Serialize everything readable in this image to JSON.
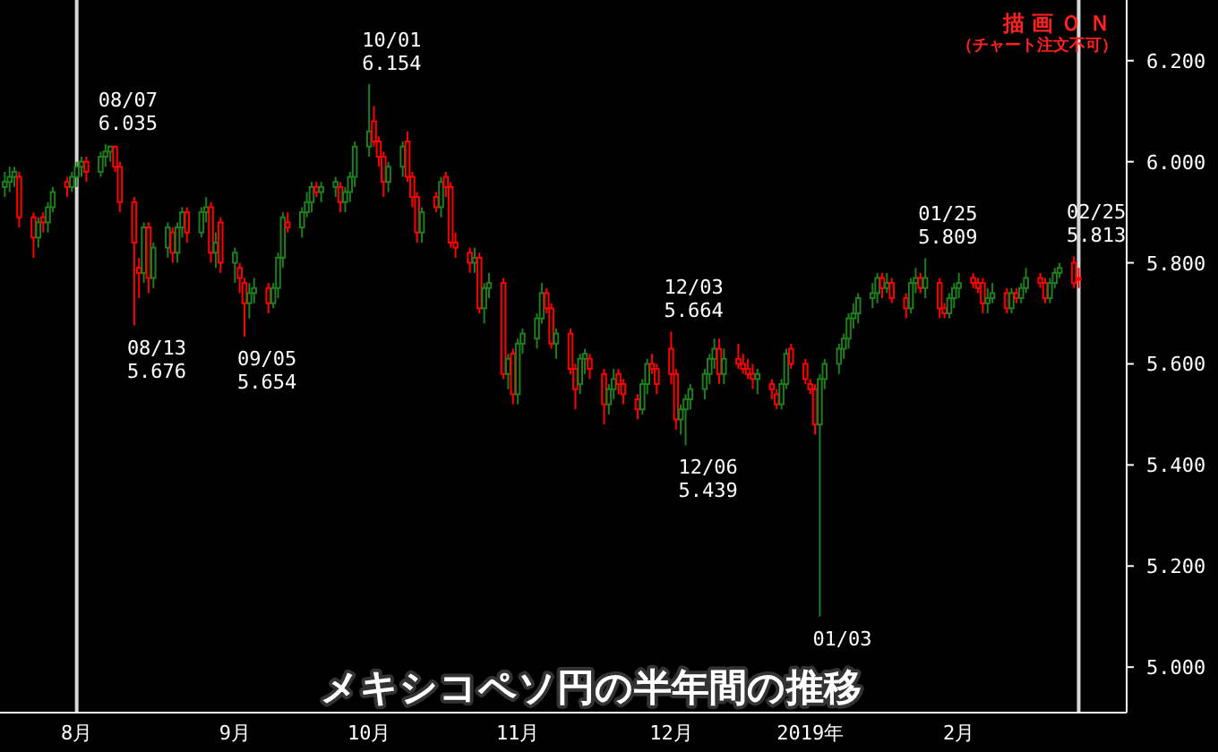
{
  "chart_data": {
    "type": "candlestick",
    "title": "メキシコペソ円の半年間の推移",
    "x": [
      "2018-07-17",
      "2018-07-18",
      "2018-07-19",
      "2018-07-20",
      "2018-07-23",
      "2018-07-24",
      "2018-07-25",
      "2018-07-26",
      "2018-07-27",
      "2018-07-30",
      "2018-07-31",
      "2018-08-01",
      "2018-08-02",
      "2018-08-03",
      "2018-08-06",
      "2018-08-07",
      "2018-08-08",
      "2018-08-09",
      "2018-08-10",
      "2018-08-13",
      "2018-08-14",
      "2018-08-15",
      "2018-08-16",
      "2018-08-17",
      "2018-08-20",
      "2018-08-21",
      "2018-08-22",
      "2018-08-23",
      "2018-08-24",
      "2018-08-27",
      "2018-08-28",
      "2018-08-29",
      "2018-08-30",
      "2018-08-31",
      "2018-09-03",
      "2018-09-04",
      "2018-09-05",
      "2018-09-06",
      "2018-09-07",
      "2018-09-10",
      "2018-09-11",
      "2018-09-12",
      "2018-09-13",
      "2018-09-14",
      "2018-09-17",
      "2018-09-18",
      "2018-09-19",
      "2018-09-20",
      "2018-09-21",
      "2018-09-24",
      "2018-09-25",
      "2018-09-26",
      "2018-09-27",
      "2018-09-28",
      "2018-10-01",
      "2018-10-02",
      "2018-10-03",
      "2018-10-04",
      "2018-10-05",
      "2018-10-08",
      "2018-10-09",
      "2018-10-10",
      "2018-10-11",
      "2018-10-12",
      "2018-10-15",
      "2018-10-16",
      "2018-10-17",
      "2018-10-18",
      "2018-10-19",
      "2018-10-22",
      "2018-10-23",
      "2018-10-24",
      "2018-10-25",
      "2018-10-26",
      "2018-10-29",
      "2018-10-30",
      "2018-10-31",
      "2018-11-01",
      "2018-11-02",
      "2018-11-05",
      "2018-11-06",
      "2018-11-07",
      "2018-11-08",
      "2018-11-09",
      "2018-11-12",
      "2018-11-13",
      "2018-11-14",
      "2018-11-15",
      "2018-11-16",
      "2018-11-19",
      "2018-11-20",
      "2018-11-21",
      "2018-11-22",
      "2018-11-23",
      "2018-11-26",
      "2018-11-27",
      "2018-11-28",
      "2018-11-29",
      "2018-11-30",
      "2018-12-03",
      "2018-12-04",
      "2018-12-05",
      "2018-12-06",
      "2018-12-07",
      "2018-12-10",
      "2018-12-11",
      "2018-12-12",
      "2018-12-13",
      "2018-12-14",
      "2018-12-17",
      "2018-12-18",
      "2018-12-19",
      "2018-12-20",
      "2018-12-21",
      "2018-12-24",
      "2018-12-25",
      "2018-12-26",
      "2018-12-27",
      "2018-12-28",
      "2018-12-31",
      "2019-01-01",
      "2019-01-02",
      "2019-01-03",
      "2019-01-04",
      "2019-01-07",
      "2019-01-08",
      "2019-01-09",
      "2019-01-10",
      "2019-01-11",
      "2019-01-14",
      "2019-01-15",
      "2019-01-16",
      "2019-01-17",
      "2019-01-18",
      "2019-01-21",
      "2019-01-22",
      "2019-01-23",
      "2019-01-24",
      "2019-01-25",
      "2019-01-28",
      "2019-01-29",
      "2019-01-30",
      "2019-01-31",
      "2019-02-01",
      "2019-02-04",
      "2019-02-05",
      "2019-02-06",
      "2019-02-07",
      "2019-02-08",
      "2019-02-11",
      "2019-02-12",
      "2019-02-13",
      "2019-02-14",
      "2019-02-15",
      "2019-02-18",
      "2019-02-19",
      "2019-02-20",
      "2019-02-21",
      "2019-02-22",
      "2019-02-25",
      "2019-02-26"
    ],
    "ohlc": [
      [
        5.95,
        5.98,
        5.93,
        5.96
      ],
      [
        5.96,
        5.99,
        5.94,
        5.97
      ],
      [
        5.97,
        5.99,
        5.95,
        5.98
      ],
      [
        5.97,
        5.98,
        5.87,
        5.89
      ],
      [
        5.89,
        5.9,
        5.81,
        5.85
      ],
      [
        5.85,
        5.89,
        5.83,
        5.88
      ],
      [
        5.89,
        5.9,
        5.86,
        5.88
      ],
      [
        5.88,
        5.92,
        5.86,
        5.91
      ],
      [
        5.91,
        5.95,
        5.9,
        5.94
      ],
      [
        5.96,
        5.97,
        5.93,
        5.95
      ],
      [
        5.95,
        5.98,
        5.94,
        5.97
      ],
      [
        5.97,
        6.0,
        5.95,
        5.99
      ],
      [
        5.99,
        6.01,
        5.97,
        6.0
      ],
      [
        6.0,
        6.01,
        5.96,
        5.98
      ],
      [
        5.98,
        6.02,
        5.97,
        6.01
      ],
      [
        6.01,
        6.035,
        5.99,
        6.02
      ],
      [
        6.02,
        6.03,
        6.0,
        6.03
      ],
      [
        6.03,
        6.03,
        5.98,
        5.99
      ],
      [
        5.99,
        6.0,
        5.9,
        5.92
      ],
      [
        5.92,
        5.93,
        5.676,
        5.84
      ],
      [
        5.79,
        5.81,
        5.73,
        5.78
      ],
      [
        5.78,
        5.88,
        5.76,
        5.87
      ],
      [
        5.87,
        5.88,
        5.74,
        5.77
      ],
      [
        5.77,
        5.84,
        5.75,
        5.83
      ],
      [
        5.83,
        5.88,
        5.81,
        5.87
      ],
      [
        5.86,
        5.87,
        5.8,
        5.82
      ],
      [
        5.82,
        5.88,
        5.8,
        5.87
      ],
      [
        5.87,
        5.91,
        5.85,
        5.9
      ],
      [
        5.9,
        5.91,
        5.84,
        5.86
      ],
      [
        5.86,
        5.91,
        5.85,
        5.9
      ],
      [
        5.9,
        5.93,
        5.88,
        5.91
      ],
      [
        5.91,
        5.92,
        5.8,
        5.82
      ],
      [
        5.82,
        5.86,
        5.79,
        5.84
      ],
      [
        5.88,
        5.89,
        5.78,
        5.8
      ],
      [
        5.8,
        5.83,
        5.76,
        5.82
      ],
      [
        5.79,
        5.8,
        5.74,
        5.77
      ],
      [
        5.76,
        5.77,
        5.654,
        5.72
      ],
      [
        5.72,
        5.76,
        5.69,
        5.74
      ],
      [
        5.74,
        5.77,
        5.72,
        5.75
      ],
      [
        5.75,
        5.76,
        5.7,
        5.72
      ],
      [
        5.72,
        5.76,
        5.71,
        5.75
      ],
      [
        5.75,
        5.82,
        5.73,
        5.81
      ],
      [
        5.81,
        5.9,
        5.79,
        5.89
      ],
      [
        5.88,
        5.9,
        5.86,
        5.87
      ],
      [
        5.87,
        5.91,
        5.85,
        5.9
      ],
      [
        5.9,
        5.94,
        5.89,
        5.92
      ],
      [
        5.92,
        5.96,
        5.9,
        5.95
      ],
      [
        5.95,
        5.96,
        5.93,
        5.94
      ],
      [
        5.94,
        5.96,
        5.92,
        5.95
      ],
      [
        5.95,
        5.97,
        5.93,
        5.96
      ],
      [
        5.95,
        5.96,
        5.9,
        5.92
      ],
      [
        5.92,
        5.95,
        5.9,
        5.94
      ],
      [
        5.94,
        5.98,
        5.92,
        5.97
      ],
      [
        5.97,
        6.04,
        5.95,
        6.03
      ],
      [
        6.03,
        6.154,
        6.01,
        6.06
      ],
      [
        6.08,
        6.11,
        6.03,
        6.04
      ],
      [
        6.04,
        6.05,
        5.99,
        6.01
      ],
      [
        6.01,
        6.02,
        5.93,
        5.96
      ],
      [
        5.96,
        6.0,
        5.94,
        5.99
      ],
      [
        5.99,
        6.04,
        5.97,
        6.03
      ],
      [
        6.04,
        6.06,
        5.96,
        5.97
      ],
      [
        5.97,
        5.98,
        5.91,
        5.93
      ],
      [
        5.93,
        5.94,
        5.84,
        5.86
      ],
      [
        5.86,
        5.91,
        5.84,
        5.9
      ],
      [
        5.93,
        5.94,
        5.9,
        5.91
      ],
      [
        5.91,
        5.97,
        5.89,
        5.96
      ],
      [
        5.97,
        5.98,
        5.93,
        5.95
      ],
      [
        5.95,
        5.96,
        5.83,
        5.84
      ],
      [
        5.84,
        5.86,
        5.81,
        5.83
      ],
      [
        5.82,
        5.83,
        5.78,
        5.8
      ],
      [
        5.8,
        5.83,
        5.78,
        5.81
      ],
      [
        5.81,
        5.82,
        5.7,
        5.71
      ],
      [
        5.71,
        5.76,
        5.68,
        5.75
      ],
      [
        5.75,
        5.78,
        5.73,
        5.76
      ],
      [
        5.76,
        5.77,
        5.57,
        5.58
      ],
      [
        5.58,
        5.62,
        5.55,
        5.61
      ],
      [
        5.62,
        5.63,
        5.52,
        5.54
      ],
      [
        5.54,
        5.65,
        5.52,
        5.64
      ],
      [
        5.64,
        5.67,
        5.62,
        5.66
      ],
      [
        5.65,
        5.7,
        5.63,
        5.69
      ],
      [
        5.69,
        5.76,
        5.68,
        5.74
      ],
      [
        5.74,
        5.75,
        5.7,
        5.71
      ],
      [
        5.71,
        5.72,
        5.63,
        5.64
      ],
      [
        5.64,
        5.67,
        5.61,
        5.66
      ],
      [
        5.66,
        5.67,
        5.58,
        5.59
      ],
      [
        5.59,
        5.6,
        5.51,
        5.55
      ],
      [
        5.56,
        5.62,
        5.54,
        5.61
      ],
      [
        5.61,
        5.63,
        5.58,
        5.62
      ],
      [
        5.61,
        5.62,
        5.57,
        5.59
      ],
      [
        5.58,
        5.59,
        5.48,
        5.52
      ],
      [
        5.52,
        5.56,
        5.5,
        5.55
      ],
      [
        5.55,
        5.59,
        5.53,
        5.57
      ],
      [
        5.58,
        5.59,
        5.54,
        5.56
      ],
      [
        5.56,
        5.57,
        5.52,
        5.54
      ],
      [
        5.53,
        5.54,
        5.49,
        5.51
      ],
      [
        5.51,
        5.57,
        5.5,
        5.56
      ],
      [
        5.56,
        5.61,
        5.54,
        5.6
      ],
      [
        5.6,
        5.62,
        5.58,
        5.59
      ],
      [
        5.59,
        5.6,
        5.54,
        5.56
      ],
      [
        5.63,
        5.664,
        5.56,
        5.58
      ],
      [
        5.58,
        5.59,
        5.47,
        5.49
      ],
      [
        5.49,
        5.52,
        5.46,
        5.51
      ],
      [
        5.51,
        5.54,
        5.439,
        5.53
      ],
      [
        5.53,
        5.56,
        5.51,
        5.55
      ],
      [
        5.55,
        5.59,
        5.53,
        5.58
      ],
      [
        5.58,
        5.62,
        5.56,
        5.61
      ],
      [
        5.61,
        5.65,
        5.59,
        5.63
      ],
      [
        5.63,
        5.65,
        5.56,
        5.58
      ],
      [
        5.58,
        5.63,
        5.56,
        5.61
      ],
      [
        5.61,
        5.64,
        5.59,
        5.6
      ],
      [
        5.6,
        5.62,
        5.58,
        5.59
      ],
      [
        5.59,
        5.61,
        5.57,
        5.58
      ],
      [
        5.58,
        5.6,
        5.55,
        5.57
      ],
      [
        5.57,
        5.59,
        5.54,
        5.58
      ],
      [
        5.56,
        5.57,
        5.53,
        5.55
      ],
      [
        5.54,
        5.55,
        5.51,
        5.52
      ],
      [
        5.52,
        5.57,
        5.51,
        5.56
      ],
      [
        5.56,
        5.63,
        5.55,
        5.62
      ],
      [
        5.63,
        5.64,
        5.59,
        5.6
      ],
      [
        5.6,
        5.61,
        5.56,
        5.57
      ],
      [
        5.56,
        5.57,
        5.54,
        5.55
      ],
      [
        5.55,
        5.56,
        5.46,
        5.48
      ],
      [
        5.48,
        5.58,
        5.1,
        5.57
      ],
      [
        5.57,
        5.61,
        5.55,
        5.6
      ],
      [
        5.6,
        5.64,
        5.58,
        5.63
      ],
      [
        5.63,
        5.66,
        5.61,
        5.65
      ],
      [
        5.65,
        5.7,
        5.63,
        5.69
      ],
      [
        5.69,
        5.72,
        5.67,
        5.7
      ],
      [
        5.7,
        5.74,
        5.68,
        5.73
      ],
      [
        5.73,
        5.76,
        5.71,
        5.74
      ],
      [
        5.74,
        5.78,
        5.72,
        5.77
      ],
      [
        5.77,
        5.78,
        5.73,
        5.75
      ],
      [
        5.75,
        5.78,
        5.74,
        5.76
      ],
      [
        5.76,
        5.77,
        5.72,
        5.73
      ],
      [
        5.73,
        5.74,
        5.69,
        5.71
      ],
      [
        5.71,
        5.77,
        5.7,
        5.76
      ],
      [
        5.76,
        5.79,
        5.74,
        5.77
      ],
      [
        5.77,
        5.78,
        5.74,
        5.75
      ],
      [
        5.75,
        5.809,
        5.73,
        5.77
      ],
      [
        5.76,
        5.77,
        5.69,
        5.71
      ],
      [
        5.71,
        5.72,
        5.69,
        5.7
      ],
      [
        5.7,
        5.74,
        5.69,
        5.73
      ],
      [
        5.73,
        5.76,
        5.71,
        5.75
      ],
      [
        5.75,
        5.78,
        5.73,
        5.76
      ],
      [
        5.77,
        5.78,
        5.75,
        5.76
      ],
      [
        5.76,
        5.77,
        5.74,
        5.75
      ],
      [
        5.76,
        5.77,
        5.7,
        5.72
      ],
      [
        5.72,
        5.75,
        5.7,
        5.73
      ],
      [
        5.73,
        5.76,
        5.72,
        5.74
      ],
      [
        5.74,
        5.75,
        5.7,
        5.71
      ],
      [
        5.71,
        5.75,
        5.7,
        5.74
      ],
      [
        5.74,
        5.75,
        5.72,
        5.73
      ],
      [
        5.73,
        5.76,
        5.72,
        5.75
      ],
      [
        5.75,
        5.79,
        5.74,
        5.77
      ],
      [
        5.77,
        5.78,
        5.75,
        5.76
      ],
      [
        5.76,
        5.77,
        5.72,
        5.73
      ],
      [
        5.73,
        5.77,
        5.72,
        5.76
      ],
      [
        5.76,
        5.79,
        5.75,
        5.78
      ],
      [
        5.78,
        5.8,
        5.77,
        5.79
      ],
      [
        5.8,
        5.813,
        5.75,
        5.76
      ],
      [
        5.77,
        5.79,
        5.75,
        5.77
      ]
    ],
    "colors": [
      "#1f7f1f",
      "#1f7f1f",
      "#1f7f1f",
      "#ff0000",
      "#ff0000",
      "#1f7f1f",
      "#ff0000",
      "#1f7f1f",
      "#1f7f1f",
      "#ff0000",
      "#1f7f1f",
      "#1f7f1f",
      "#1f7f1f",
      "#ff0000",
      "#1f7f1f",
      "#1f7f1f",
      "#1f7f1f",
      "#ff0000",
      "#ff0000",
      "#ff0000",
      "#ff0000",
      "#1f7f1f",
      "#ff0000",
      "#1f7f1f",
      "#1f7f1f",
      "#ff0000",
      "#1f7f1f",
      "#1f7f1f",
      "#ff0000",
      "#1f7f1f",
      "#1f7f1f",
      "#ff0000",
      "#1f7f1f",
      "#ff0000",
      "#1f7f1f",
      "#ff0000",
      "#ff0000",
      "#1f7f1f",
      "#1f7f1f",
      "#ff0000",
      "#1f7f1f",
      "#1f7f1f",
      "#1f7f1f",
      "#ff0000",
      "#1f7f1f",
      "#1f7f1f",
      "#1f7f1f",
      "#ff0000",
      "#1f7f1f",
      "#1f7f1f",
      "#ff0000",
      "#1f7f1f",
      "#1f7f1f",
      "#1f7f1f",
      "#1f7f1f",
      "#ff0000",
      "#ff0000",
      "#ff0000",
      "#1f7f1f",
      "#1f7f1f",
      "#ff0000",
      "#ff0000",
      "#ff0000",
      "#1f7f1f",
      "#ff0000",
      "#1f7f1f",
      "#ff0000",
      "#ff0000",
      "#ff0000",
      "#ff0000",
      "#1f7f1f",
      "#ff0000",
      "#1f7f1f",
      "#1f7f1f",
      "#ff0000",
      "#1f7f1f",
      "#ff0000",
      "#1f7f1f",
      "#1f7f1f",
      "#1f7f1f",
      "#1f7f1f",
      "#ff0000",
      "#ff0000",
      "#1f7f1f",
      "#ff0000",
      "#ff0000",
      "#1f7f1f",
      "#1f7f1f",
      "#ff0000",
      "#ff0000",
      "#1f7f1f",
      "#1f7f1f",
      "#ff0000",
      "#ff0000",
      "#ff0000",
      "#1f7f1f",
      "#1f7f1f",
      "#ff0000",
      "#ff0000",
      "#ff0000",
      "#ff0000",
      "#1f7f1f",
      "#1f7f1f",
      "#1f7f1f",
      "#1f7f1f",
      "#1f7f1f",
      "#1f7f1f",
      "#ff0000",
      "#1f7f1f",
      "#ff0000",
      "#ff0000",
      "#ff0000",
      "#ff0000",
      "#1f7f1f",
      "#ff0000",
      "#ff0000",
      "#1f7f1f",
      "#1f7f1f",
      "#ff0000",
      "#ff0000",
      "#ff0000",
      "#ff0000",
      "#1f7f1f",
      "#1f7f1f",
      "#1f7f1f",
      "#1f7f1f",
      "#1f7f1f",
      "#1f7f1f",
      "#1f7f1f",
      "#1f7f1f",
      "#1f7f1f",
      "#ff0000",
      "#1f7f1f",
      "#ff0000",
      "#ff0000",
      "#1f7f1f",
      "#1f7f1f",
      "#ff0000",
      "#1f7f1f",
      "#ff0000",
      "#ff0000",
      "#1f7f1f",
      "#1f7f1f",
      "#1f7f1f",
      "#ff0000",
      "#ff0000",
      "#ff0000",
      "#1f7f1f",
      "#1f7f1f",
      "#ff0000",
      "#1f7f1f",
      "#ff0000",
      "#1f7f1f",
      "#1f7f1f",
      "#ff0000",
      "#ff0000",
      "#1f7f1f",
      "#1f7f1f",
      "#1f7f1f",
      "#ff0000",
      "#ff0000"
    ],
    "xlim": [
      "2018-07-16",
      "2019-03-08"
    ],
    "xticks": [
      {
        "value": "2018-08-01",
        "label": "8月"
      },
      {
        "value": "2018-09-03",
        "label": "9月"
      },
      {
        "value": "2018-10-01",
        "label": "10月"
      },
      {
        "value": "2018-11-01",
        "label": "11月"
      },
      {
        "value": "2018-12-03",
        "label": "12月"
      },
      {
        "value": "2019-01-01",
        "label": "2019年"
      },
      {
        "value": "2019-02-01",
        "label": "2月"
      }
    ],
    "ylim": [
      4.91,
      6.32
    ],
    "yticks": [
      {
        "value": 5.0,
        "label": "5.000"
      },
      {
        "value": 5.2,
        "label": "5.200"
      },
      {
        "value": 5.4,
        "label": "5.400"
      },
      {
        "value": 5.6,
        "label": "5.600"
      },
      {
        "value": 5.8,
        "label": "5.800"
      },
      {
        "value": 6.0,
        "label": "6.000"
      },
      {
        "value": 6.2,
        "label": "6.200"
      }
    ],
    "ref_lines": [
      {
        "axis": "x",
        "value": "2018-08-01",
        "color": "#d8d8d8"
      },
      {
        "axis": "x",
        "value": "2019-02-26",
        "color": "#d8d8d8"
      }
    ],
    "annotations": [
      "描画ＯＮ",
      "（チャート注文不可）",
      {
        "text": "08/07\n6.035",
        "x": "2018-08-07",
        "y": 6.035
      },
      {
        "text": "08/13\n5.676",
        "x": "2018-08-13",
        "y": 5.676
      },
      {
        "text": "09/05\n5.654",
        "x": "2018-09-05",
        "y": 5.654
      },
      {
        "text": "10/01\n6.154",
        "x": "2018-10-01",
        "y": 6.154
      },
      {
        "text": "12/03\n5.664",
        "x": "2018-12-03",
        "y": 5.664
      },
      {
        "text": "12/06\n5.439",
        "x": "2018-12-06",
        "y": 5.439
      },
      {
        "text": "01/03",
        "x": "2019-01-03",
        "y": 5.1
      },
      {
        "text": "01/25\n5.809",
        "x": "2019-01-25",
        "y": 5.809
      },
      {
        "text": "02/25\n5.813",
        "x": "2019-02-25",
        "y": 5.813
      }
    ]
  }
}
